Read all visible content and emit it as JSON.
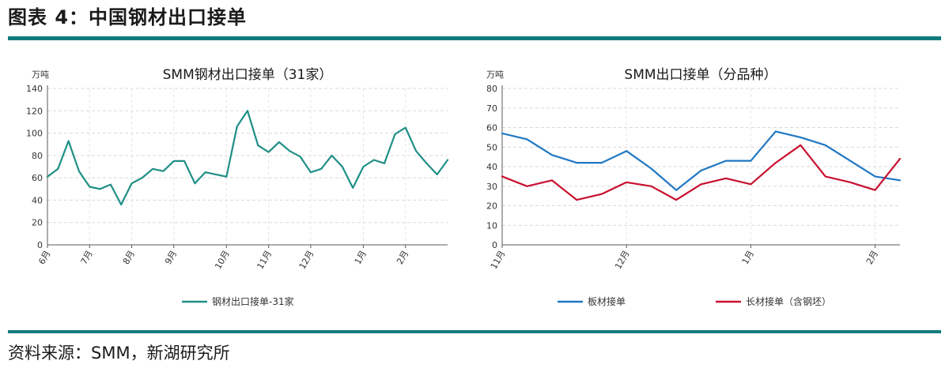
{
  "figure_title": "图表 4：中国钢材出口接单",
  "source": "资料来源：SMM，新湖研究所",
  "chart_data": [
    {
      "type": "line",
      "title": "SMM钢材出口接单（31家）",
      "ylabel": "万吨",
      "ylim": [
        0,
        140
      ],
      "yticks": [
        0,
        20,
        40,
        60,
        80,
        100,
        120,
        140
      ],
      "grid": true,
      "legend": "bottom",
      "x_tick_labels": [
        "6月",
        "7月",
        "8月",
        "9月",
        "10月",
        "11月",
        "12月",
        "1月",
        "2月"
      ],
      "series": [
        {
          "name": "钢材出口接单-31家",
          "color": "#1f8f86",
          "values": [
            61,
            68,
            93,
            66,
            52,
            50,
            54,
            36,
            55,
            60,
            68,
            66,
            75,
            75,
            55,
            65,
            63,
            61,
            106,
            120,
            89,
            83,
            92,
            84,
            79,
            65,
            68,
            80,
            70,
            51,
            70,
            76,
            73,
            99,
            105,
            84,
            73,
            63,
            76
          ]
        }
      ]
    },
    {
      "type": "line",
      "title": "SMM出口接单（分品种）",
      "ylabel": "万吨",
      "ylim": [
        0,
        80
      ],
      "yticks": [
        0,
        10,
        20,
        30,
        40,
        50,
        60,
        70,
        80
      ],
      "grid": true,
      "legend": "bottom",
      "x_tick_labels": [
        "11月",
        "12月",
        "1月",
        "2月"
      ],
      "series": [
        {
          "name": "板材接单",
          "color": "#1f77c3",
          "values": [
            57,
            54,
            46,
            42,
            42,
            48,
            39,
            28,
            38,
            43,
            43,
            58,
            55,
            51,
            43,
            35,
            33
          ]
        },
        {
          "name": "长材接单（含钢坯）",
          "color": "#c8102e",
          "values": [
            35,
            30,
            33,
            23,
            26,
            32,
            30,
            23,
            31,
            34,
            31,
            42,
            51,
            35,
            32,
            28,
            44
          ]
        }
      ]
    }
  ]
}
